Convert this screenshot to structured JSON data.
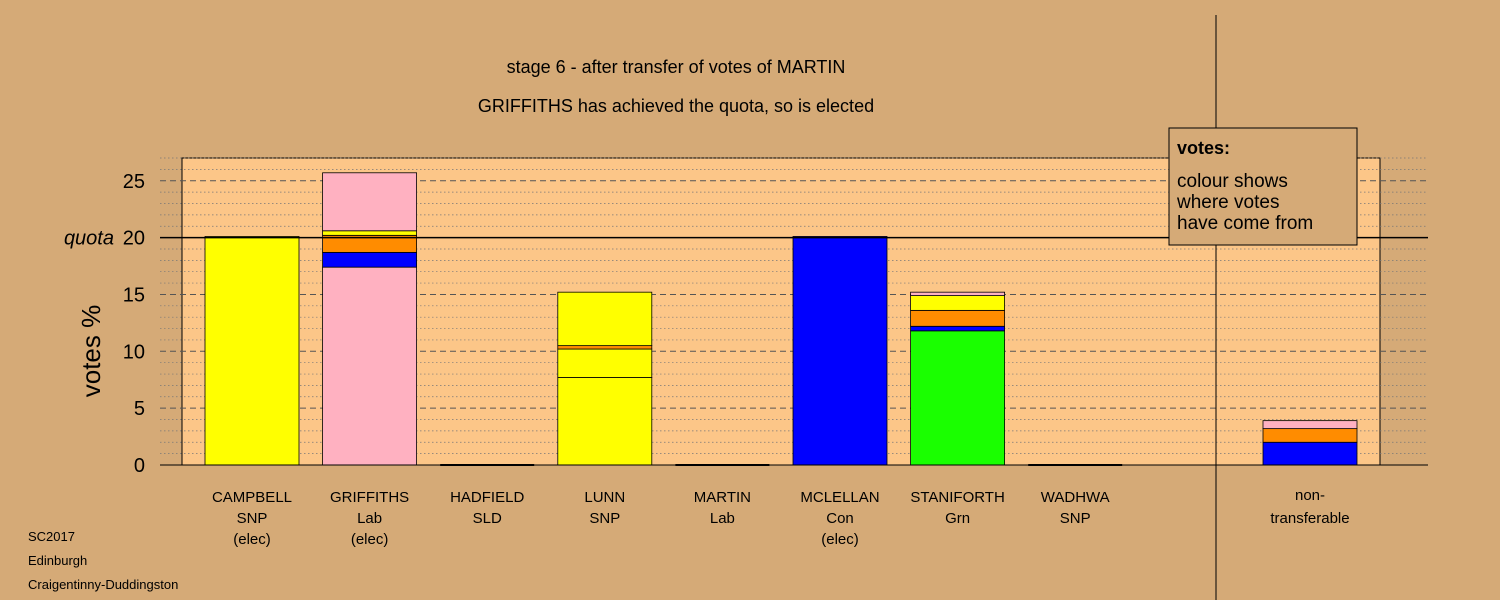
{
  "colors": {
    "background": "#d5aa77",
    "plot_fill": "#fcc688",
    "SNP": "#ffff00",
    "Lab": "#ffb1c1",
    "Con": "#0000ff",
    "Grn": "#1aff00",
    "SLD": "#ff8c00"
  },
  "chart_data": {
    "type": "bar",
    "stacked": true,
    "title": "stage 6 - after transfer of votes of MARTIN",
    "subtitle": "GRIFFITHS has achieved the quota, so is elected",
    "ylabel": "votes %",
    "ylim": [
      0,
      27
    ],
    "yticks": [
      "0",
      "5",
      "10",
      "15",
      "20",
      "25"
    ],
    "quota": 20,
    "quota_label": "quota",
    "grid": "dashed major lines every 5, dotted minor lines every 1",
    "categories": [
      {
        "name": "CAMPBELL",
        "party": "SNP",
        "status": "(elec)"
      },
      {
        "name": "GRIFFITHS",
        "party": "Lab",
        "status": "(elec)"
      },
      {
        "name": "HADFIELD",
        "party": "SLD",
        "status": ""
      },
      {
        "name": "LUNN",
        "party": "SNP",
        "status": ""
      },
      {
        "name": "MARTIN",
        "party": "Lab",
        "status": ""
      },
      {
        "name": "MCLELLAN",
        "party": "Con",
        "status": "(elec)"
      },
      {
        "name": "STANIFORTH",
        "party": "Grn",
        "status": ""
      },
      {
        "name": "WADHWA",
        "party": "SNP",
        "status": ""
      }
    ],
    "nontransferable": {
      "label_line1": "non-",
      "label_line2": "transferable"
    },
    "stacks": [
      [
        {
          "party": "SNP",
          "value": 20.0
        },
        {
          "party": "SNP",
          "value": 0.1
        }
      ],
      [
        {
          "party": "Lab",
          "value": 17.4
        },
        {
          "party": "Con",
          "value": 1.3
        },
        {
          "party": "SLD",
          "value": 1.5
        },
        {
          "party": "SNP",
          "value": 0.4
        },
        {
          "party": "Lab",
          "value": 5.1
        }
      ],
      [],
      [
        {
          "party": "SNP",
          "value": 7.7
        },
        {
          "party": "SNP",
          "value": 2.5
        },
        {
          "party": "SLD",
          "value": 0.3
        },
        {
          "party": "SNP",
          "value": 4.7
        }
      ],
      [],
      [
        {
          "party": "Con",
          "value": 20.0
        },
        {
          "party": "Con",
          "value": 0.1
        }
      ],
      [
        {
          "party": "Grn",
          "value": 11.8
        },
        {
          "party": "Con",
          "value": 0.4
        },
        {
          "party": "SLD",
          "value": 1.4
        },
        {
          "party": "SNP",
          "value": 1.3
        },
        {
          "party": "Lab",
          "value": 0.3
        }
      ],
      [],
      [
        {
          "party": "Con",
          "value": 2.0
        },
        {
          "party": "SLD",
          "value": 1.2
        },
        {
          "party": "Lab",
          "value": 0.7
        }
      ]
    ],
    "legend": {
      "title": "votes:",
      "lines": [
        "colour shows",
        "where votes",
        "have come from"
      ],
      "placement": "top-right"
    },
    "footer": [
      "SC2017",
      "Edinburgh",
      "Craigentinny-Duddingston"
    ]
  }
}
